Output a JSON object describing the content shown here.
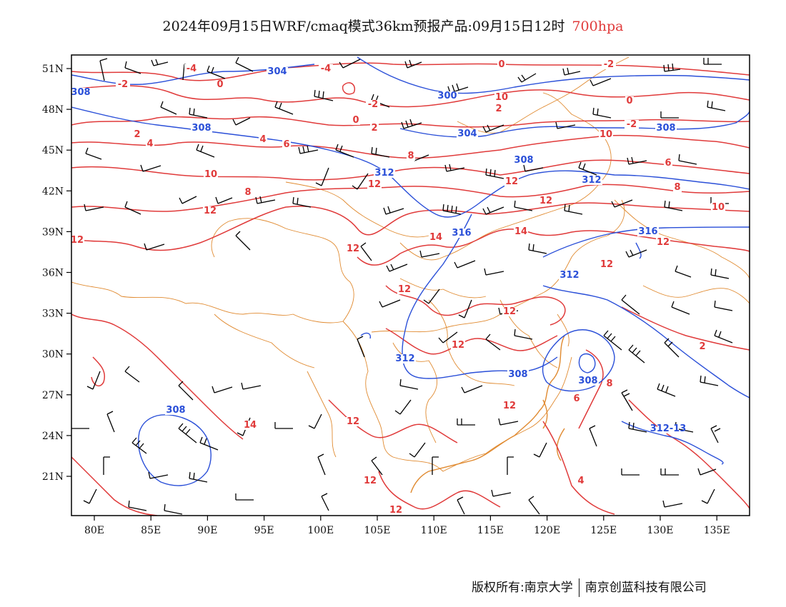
{
  "title": {
    "main": "2024年09月15日WRF/cmaq模式36km预报产品:09月15日12时",
    "level": "700hpa"
  },
  "map": {
    "x_ticks": [
      "80E",
      "85E",
      "90E",
      "95E",
      "100E",
      "105E",
      "110E",
      "115E",
      "120E",
      "125E",
      "130E",
      "135E"
    ],
    "y_ticks": [
      "51N",
      "48N",
      "45N",
      "42N",
      "39N",
      "36N",
      "33N",
      "30N",
      "27N",
      "24N",
      "21N"
    ],
    "height_labels": [
      "304",
      "308",
      "300",
      "308",
      "304",
      "308",
      "308",
      "312",
      "312",
      "316",
      "316",
      "312",
      "312",
      "308",
      "308",
      "312-13",
      "308"
    ],
    "temperature_labels": [
      "-4",
      "-2",
      "0",
      "-4",
      "0",
      "-2",
      "-2",
      "0",
      "2",
      "2",
      "-2",
      "0",
      "2",
      "4",
      "4",
      "6",
      "8",
      "10",
      "8",
      "12",
      "12",
      "12",
      "12",
      "12",
      "12",
      "14",
      "14",
      "12",
      "12",
      "12",
      "12",
      "14",
      "12",
      "12",
      "12",
      "12",
      "6",
      "8",
      "4",
      "2",
      "6",
      "8",
      "10",
      "10",
      "10",
      "12"
    ],
    "colors": {
      "height": "#2a4fd8",
      "temperature": "#e03a3a",
      "boundary": "#e08a30",
      "wind": "#000000"
    }
  },
  "footer": {
    "left": "版权所有:南京大学",
    "right": "南京创蓝科技有限公司"
  }
}
